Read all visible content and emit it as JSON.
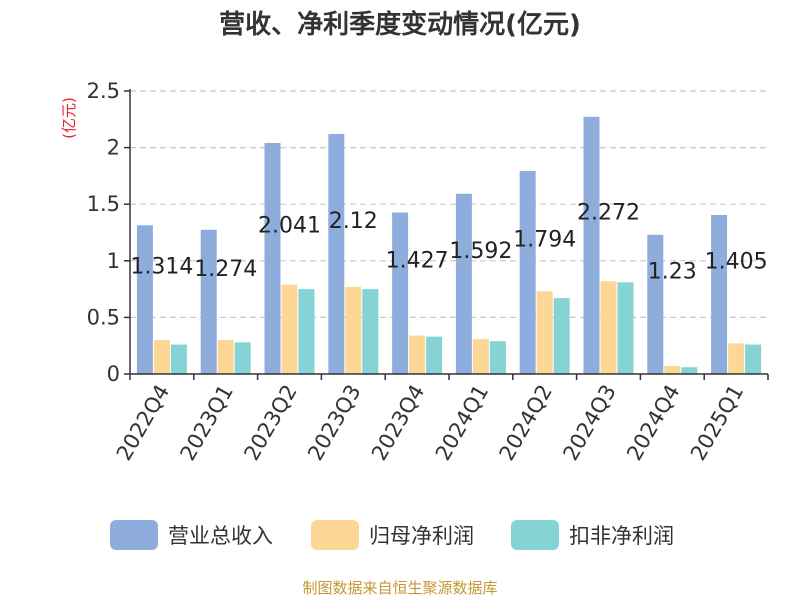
{
  "chart_data": {
    "type": "bar",
    "title": "营收、净利季度变动情况(亿元)",
    "ylabel": "(亿元)",
    "ylim": [
      0,
      2.5
    ],
    "yticks": [
      "0",
      "0.5",
      "1",
      "1.5",
      "2",
      "2.5"
    ],
    "grid": true,
    "legend_position": "bottom",
    "categories": [
      "2022Q4",
      "2023Q1",
      "2023Q2",
      "2023Q3",
      "2023Q4",
      "2024Q1",
      "2024Q2",
      "2024Q3",
      "2024Q4",
      "2025Q1"
    ],
    "series": [
      {
        "name": "营业总收入",
        "color": "#8eaddc",
        "values": [
          1.314,
          1.274,
          2.041,
          2.12,
          1.427,
          1.592,
          1.794,
          2.272,
          1.23,
          1.405
        ]
      },
      {
        "name": "归母净利润",
        "color": "#fdd795",
        "values": [
          0.3,
          0.3,
          0.79,
          0.77,
          0.34,
          0.31,
          0.73,
          0.82,
          0.07,
          0.27
        ]
      },
      {
        "name": "扣非净利润",
        "color": "#85d3d5",
        "values": [
          0.26,
          0.28,
          0.75,
          0.75,
          0.33,
          0.29,
          0.67,
          0.81,
          0.06,
          0.26
        ]
      }
    ],
    "data_labels": [
      "1.314",
      "1.274",
      "2.041",
      "2.12",
      "1.427",
      "1.592",
      "1.794",
      "2.272",
      "1.23",
      "1.405"
    ]
  },
  "footer": {
    "source": "制图数据来自恒生聚源数据库"
  }
}
